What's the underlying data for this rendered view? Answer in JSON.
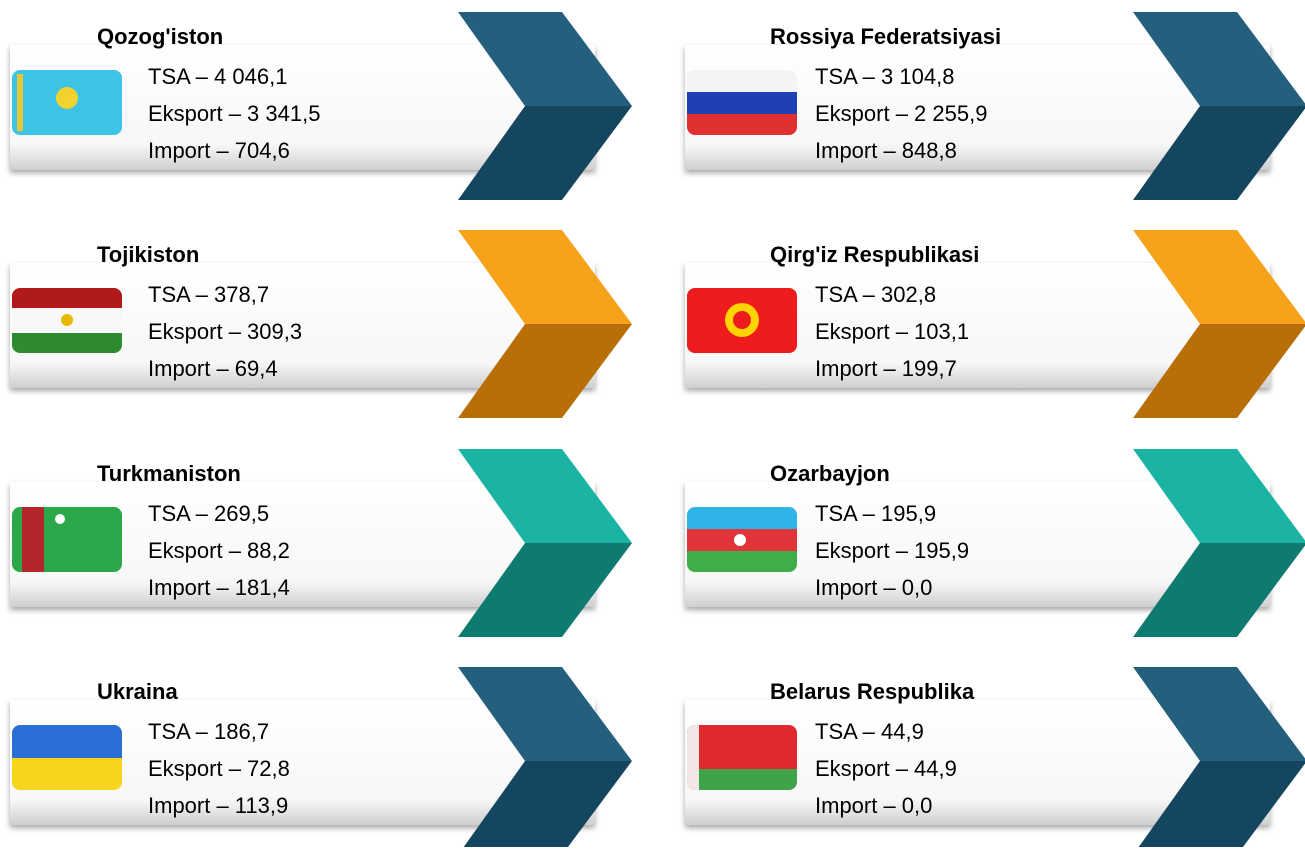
{
  "cards": [
    {
      "title": "Qozog'iston",
      "lines": [
        "TSA – 4 046,1",
        "Eksport – 3 341,5",
        "Import – 704,6"
      ]
    },
    {
      "title": "Rossiya  Federatsiyasi",
      "lines": [
        "TSA – 3 104,8",
        "Eksport – 2 255,9",
        "Import – 848,8"
      ]
    },
    {
      "title": "Tojikiston",
      "lines": [
        "TSA – 378,7",
        "Eksport – 309,3",
        "Import – 69,4"
      ]
    },
    {
      "title": "Qirg'iz Respublikasi",
      "lines": [
        "TSA – 302,8",
        "Eksport – 103,1",
        "Import – 199,7"
      ]
    },
    {
      "title": "Turkmaniston",
      "lines": [
        "TSA – 269,5",
        "Eksport – 88,2",
        "Import – 181,4"
      ]
    },
    {
      "title": "Ozarbayjon",
      "lines": [
        "TSA – 195,9",
        "Eksport – 195,9",
        "Import – 0,0"
      ]
    },
    {
      "title": "Ukraina",
      "lines": [
        "TSA – 186,7",
        "Eksport – 72,8",
        "Import – 113,9"
      ]
    },
    {
      "title": "Belarus  Respublika",
      "lines": [
        "TSA – 44,9",
        "Eksport – 44,9",
        "Import – 0,0"
      ]
    }
  ]
}
